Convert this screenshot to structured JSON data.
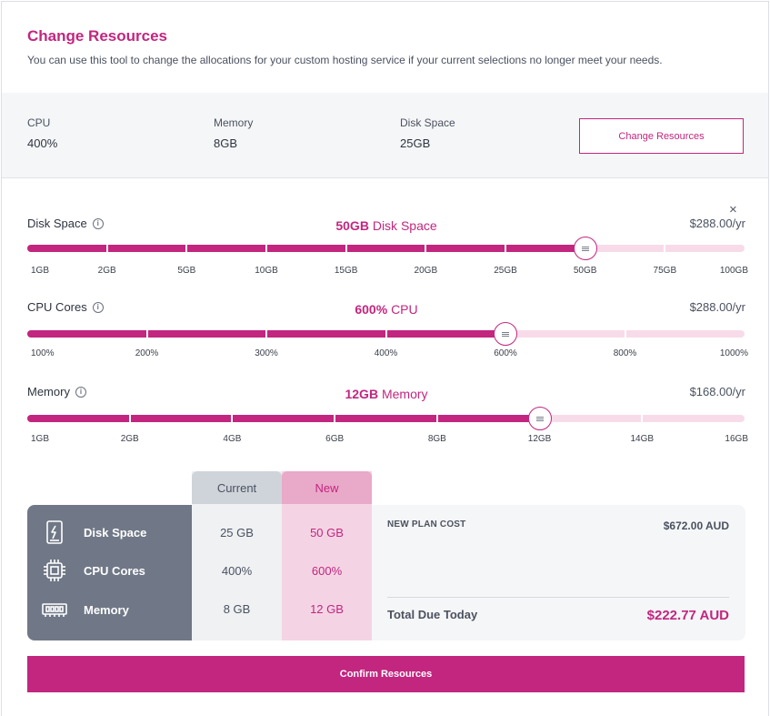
{
  "header": {
    "title": "Change Resources",
    "subtitle": "You can use this tool to change the allocations for your custom hosting service if your current selections no longer meet your needs."
  },
  "current": {
    "cpu_label": "CPU",
    "cpu_value": "400%",
    "memory_label": "Memory",
    "memory_value": "8GB",
    "disk_label": "Disk Space",
    "disk_value": "25GB",
    "change_button": "Change Resources"
  },
  "close_glyph": "×",
  "sliders": {
    "disk": {
      "label": "Disk Space",
      "selected_value": "50GB",
      "selected_unit": "Disk Space",
      "price": "$288.00/yr",
      "ticks": [
        "1GB",
        "2GB",
        "5GB",
        "10GB",
        "15GB",
        "20GB",
        "25GB",
        "50GB",
        "75GB",
        "100GB"
      ],
      "selected_index": 7
    },
    "cpu": {
      "label": "CPU Cores",
      "selected_value": "600%",
      "selected_unit": "CPU",
      "price": "$288.00/yr",
      "ticks": [
        "100%",
        "200%",
        "300%",
        "400%",
        "600%",
        "800%",
        "1000%"
      ],
      "selected_index": 4
    },
    "memory": {
      "label": "Memory",
      "selected_value": "12GB",
      "selected_unit": "Memory",
      "price": "$168.00/yr",
      "ticks": [
        "1GB",
        "2GB",
        "4GB",
        "6GB",
        "8GB",
        "12GB",
        "14GB",
        "16GB"
      ],
      "selected_index": 5
    }
  },
  "summary": {
    "current_header": "Current",
    "new_header": "New",
    "rows": [
      {
        "name": "Disk Space",
        "icon": "disk-icon",
        "current": "25 GB",
        "new": "50 GB"
      },
      {
        "name": "CPU Cores",
        "icon": "cpu-icon",
        "current": "400%",
        "new": "600%"
      },
      {
        "name": "Memory",
        "icon": "memory-icon",
        "current": "8 GB",
        "new": "12 GB"
      }
    ],
    "new_plan_cost_label": "NEW PLAN COST",
    "new_plan_cost_value": "$672.00 AUD",
    "total_due_label": "Total Due Today",
    "total_due_value": "$222.77 AUD"
  },
  "confirm_button": "Confirm Resources",
  "colors": {
    "accent": "#c2267f",
    "track_light": "#f8dbe9",
    "summary_dark": "#707887"
  }
}
